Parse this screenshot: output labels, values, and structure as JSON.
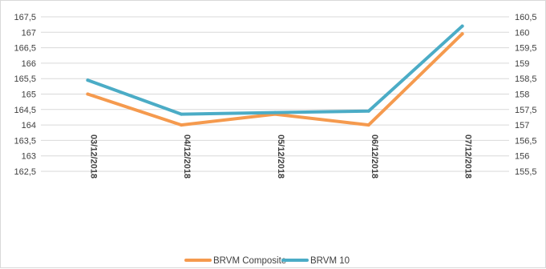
{
  "chart_data": {
    "type": "line",
    "categories": [
      "03/12/2018",
      "04/12/2018",
      "05/12/2018",
      "06/12/2018",
      "07/12/2018"
    ],
    "series": [
      {
        "name": "BRVM Composite",
        "axis": "left",
        "color": "#F59A4E",
        "values": [
          165.0,
          164.0,
          164.35,
          164.0,
          166.95
        ]
      },
      {
        "name": "BRVM 10",
        "axis": "right",
        "color": "#4BACC6",
        "values": [
          158.45,
          157.35,
          157.4,
          157.45,
          160.2
        ]
      }
    ],
    "y_left": {
      "min": 162.5,
      "max": 167.5,
      "step": 0.5,
      "ticks": [
        "167,5",
        "167",
        "166,5",
        "166",
        "165,5",
        "165",
        "164,5",
        "164",
        "163,5",
        "163",
        "162,5"
      ]
    },
    "y_right": {
      "min": 155.5,
      "max": 160.5,
      "step": 0.5,
      "ticks": [
        "160,5",
        "160",
        "159,5",
        "159",
        "158,5",
        "158",
        "157,5",
        "157",
        "156,5",
        "156",
        "155,5"
      ]
    },
    "grid": true,
    "legend": "bottom"
  }
}
